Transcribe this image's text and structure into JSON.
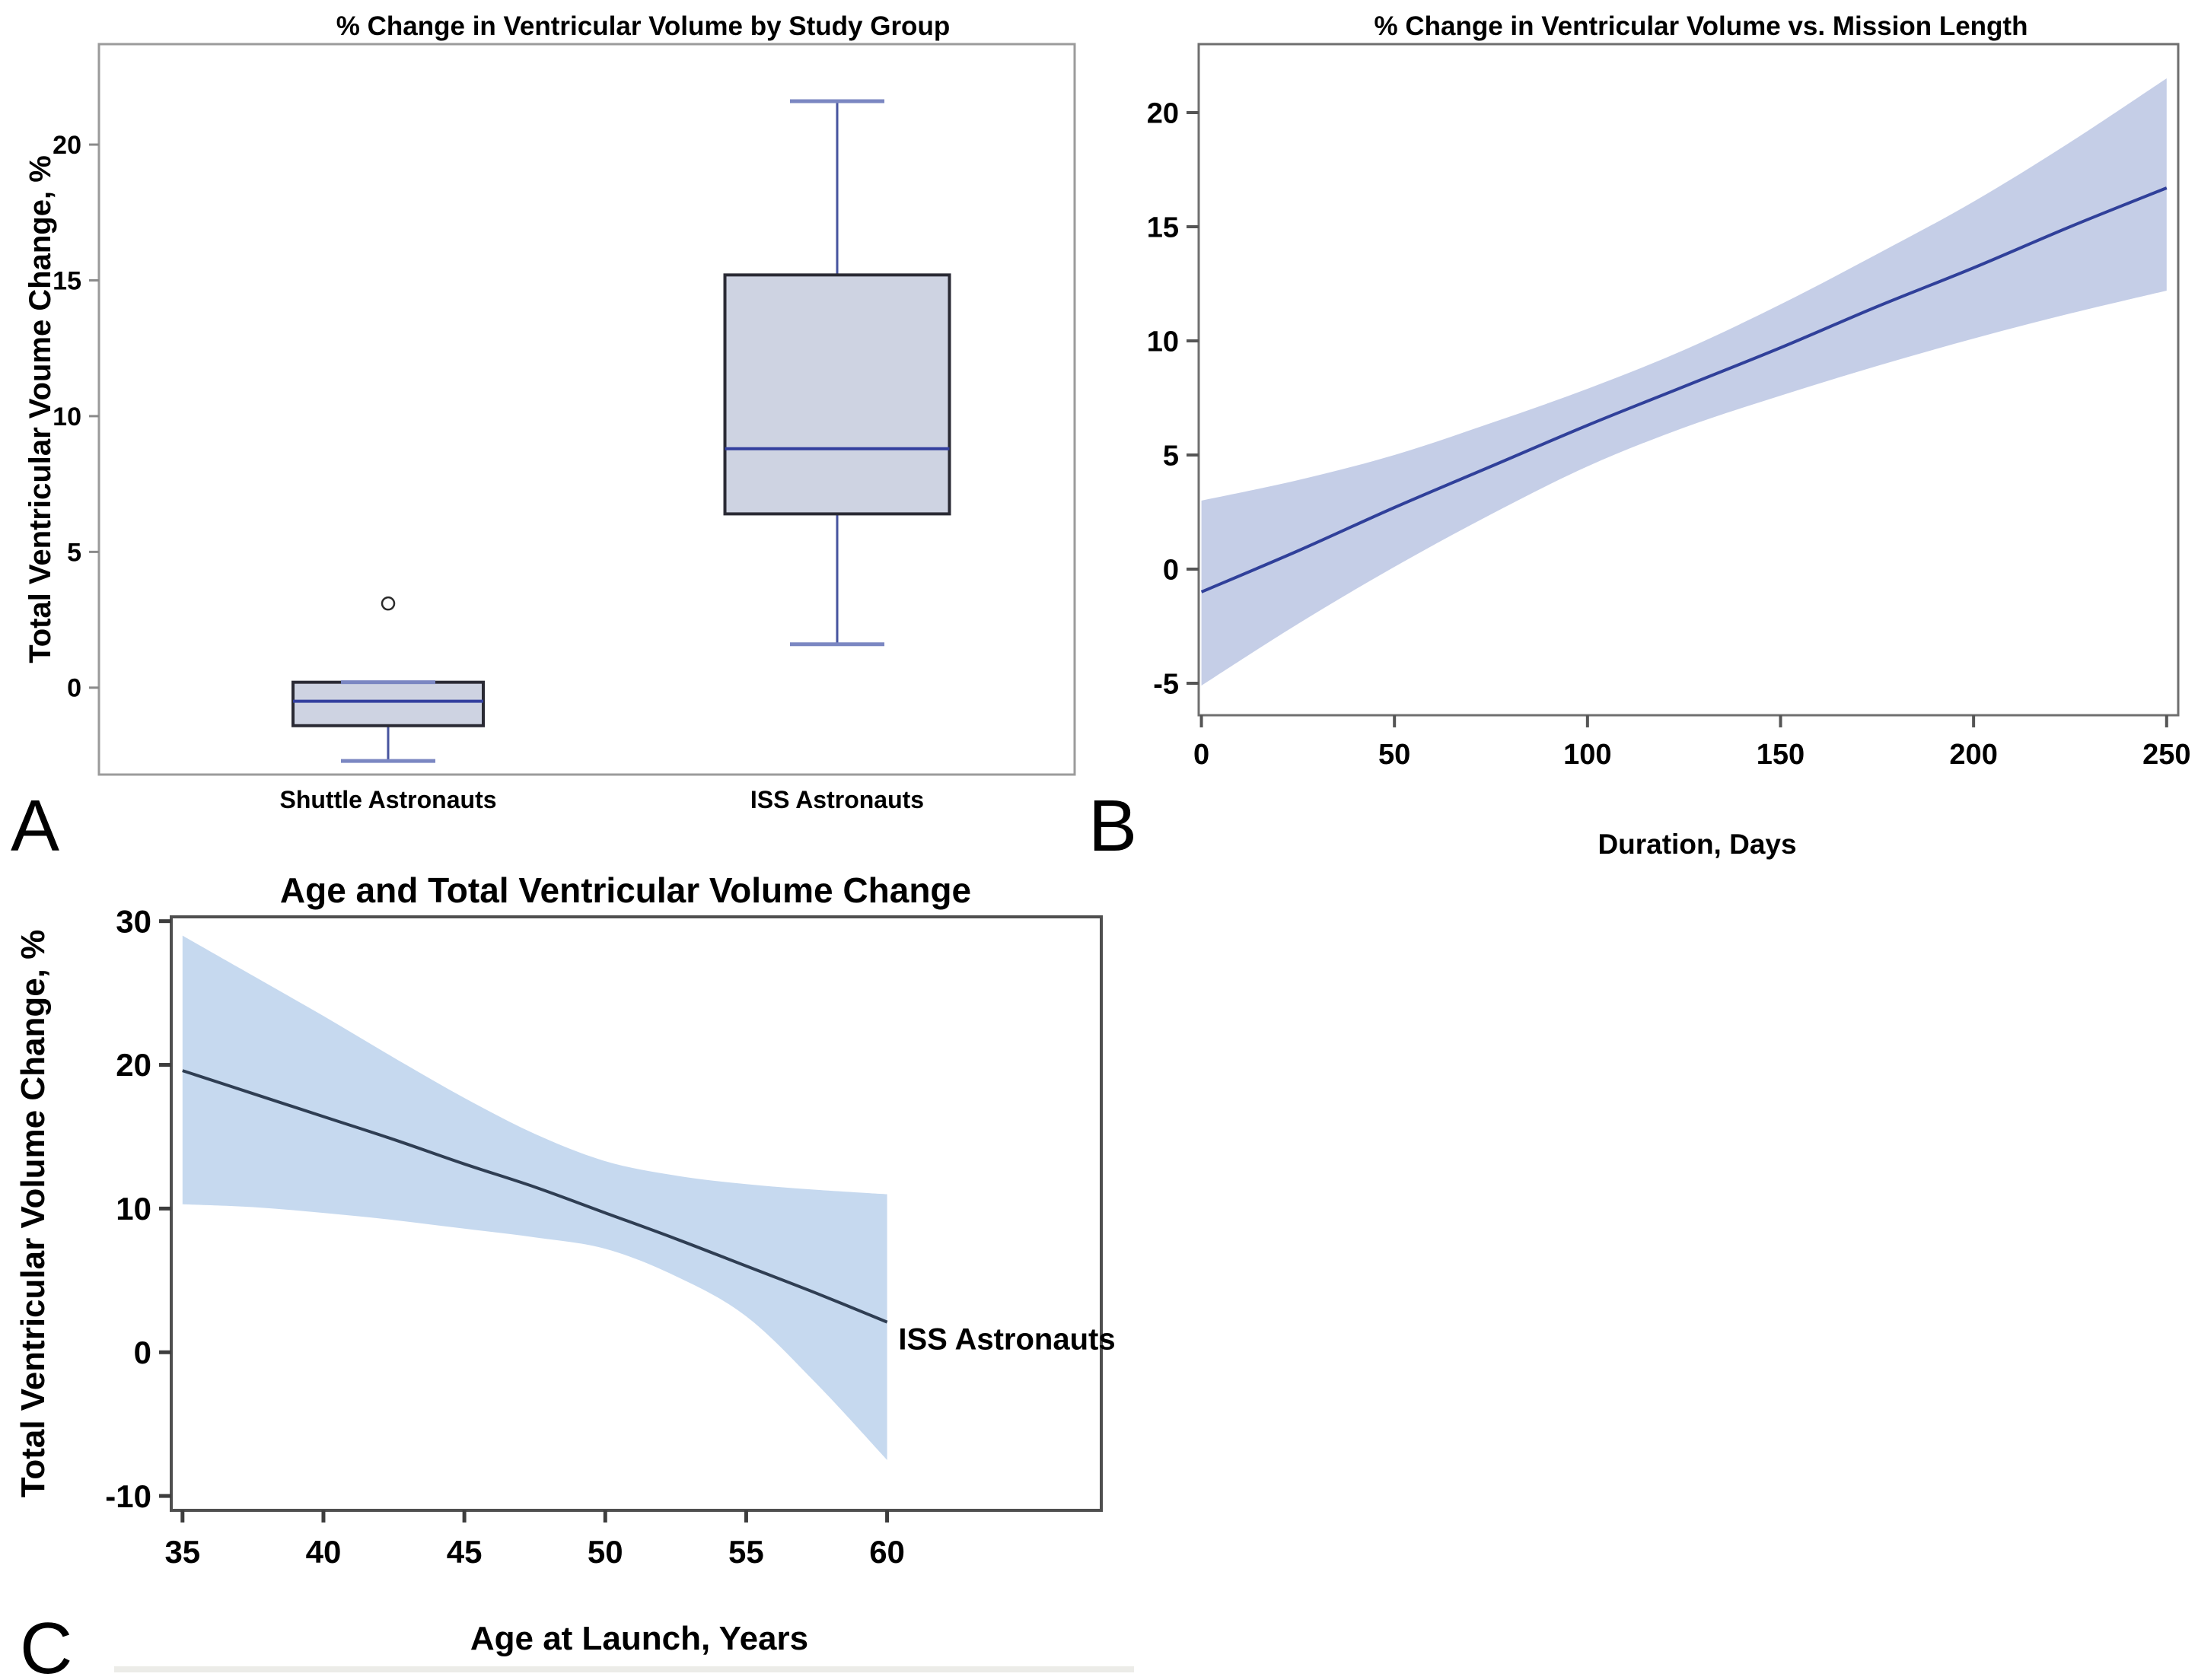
{
  "figure": {
    "panel_labels": {
      "a": "A",
      "b": "B",
      "c": "C"
    },
    "background": "#ffffff"
  },
  "chart_data": [
    {
      "panel": "A",
      "type": "box",
      "title": "% Change in Ventricular Volume by Study Group",
      "ylabel": "Total Ventricular Voume Change, %",
      "categories": [
        "Shuttle Astronauts",
        "ISS Astronauts"
      ],
      "yticks": [
        0,
        5,
        10,
        15,
        20
      ],
      "ylim": [
        -3.2,
        23.7
      ],
      "grid": false,
      "boxes": [
        {
          "category": "Shuttle Astronauts",
          "whisker_low": -2.7,
          "q1": -1.4,
          "median": -0.5,
          "q3": 0.2,
          "whisker_high": 0.2,
          "outliers": [
            3.1
          ]
        },
        {
          "category": "ISS Astronauts",
          "whisker_low": 1.6,
          "q1": 6.4,
          "median": 8.8,
          "q3": 15.2,
          "whisker_high": 21.6,
          "outliers": []
        }
      ],
      "colors": {
        "box_fill": "#ced3e2",
        "box_border": "#2a2a34",
        "median": "#333f9e",
        "whisker": "#47549f",
        "cap": "#7b87c2",
        "outlier": "#2a2a2a",
        "frame": "#9b9b9b"
      }
    },
    {
      "panel": "B",
      "type": "line_band",
      "title": "% Change in Ventricular Volume vs. Mission Length",
      "xlabel": "Duration, Days",
      "xticks": [
        0,
        50,
        100,
        150,
        200,
        250
      ],
      "yticks": [
        -5,
        0,
        5,
        10,
        15,
        20
      ],
      "xlim": [
        -0.7,
        253.0
      ],
      "ylim": [
        -6.4,
        23.0
      ],
      "grid": false,
      "x": [
        0,
        25,
        50,
        75,
        100,
        125,
        150,
        175,
        200,
        225,
        250
      ],
      "line": [
        -1.0,
        0.8,
        2.7,
        4.5,
        6.3,
        8.0,
        9.7,
        11.5,
        13.2,
        15.0,
        16.7
      ],
      "band_upper": [
        3.0,
        3.9,
        5.0,
        6.4,
        7.9,
        9.6,
        11.6,
        13.8,
        16.1,
        18.7,
        21.5
      ],
      "band_lower": [
        -5.1,
        -2.4,
        0.1,
        2.4,
        4.5,
        6.2,
        7.6,
        8.9,
        10.1,
        11.2,
        12.2
      ],
      "colors": {
        "line": "#30409a",
        "band": "#c5cee7",
        "frame": "#6f6f6f"
      }
    },
    {
      "panel": "C",
      "type": "line_band",
      "title": "Age and Total Ventricular Volume Change",
      "xlabel": "Age at Launch, Years",
      "ylabel": "Total Ventricular Volume Change, %",
      "xticks": [
        35,
        40,
        45,
        50,
        55,
        60
      ],
      "yticks": [
        -10,
        0,
        10,
        20,
        30
      ],
      "xlim": [
        34.6,
        67.6
      ],
      "ylim": [
        -11.0,
        30.3
      ],
      "grid": false,
      "x": [
        35,
        37.5,
        40,
        42.5,
        45,
        47.5,
        50,
        52.5,
        55,
        57.5,
        60
      ],
      "line": [
        19.6,
        18.0,
        16.4,
        14.8,
        13.1,
        11.5,
        9.7,
        7.9,
        6.0,
        4.1,
        2.1
      ],
      "band_upper": [
        29.0,
        26.2,
        23.4,
        20.5,
        17.7,
        15.2,
        13.3,
        12.3,
        11.7,
        11.3,
        11.0
      ],
      "band_lower": [
        10.3,
        10.1,
        9.7,
        9.2,
        8.6,
        8.0,
        7.2,
        5.3,
        2.5,
        -2.2,
        -7.5
      ],
      "annotation": {
        "text": "ISS Astronauts",
        "x": 60.4,
        "y": 0.2
      },
      "colors": {
        "line": "#2f3e53",
        "band": "#c6d9ef",
        "frame": "#4f4f4f"
      }
    }
  ]
}
